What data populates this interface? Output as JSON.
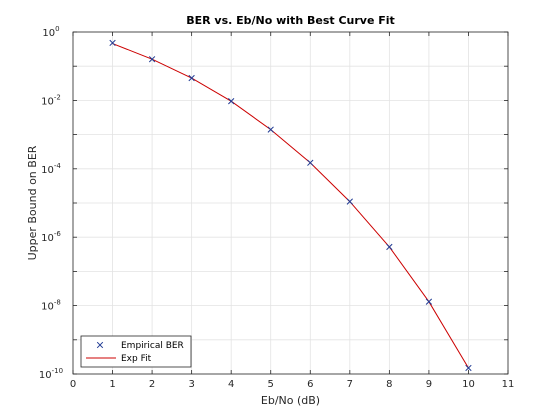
{
  "chart_data": {
    "type": "line",
    "title": "BER vs. Eb/No with Best Curve Fit",
    "xlabel": "Eb/No (dB)",
    "ylabel": "Upper Bound on BER",
    "xlim": [
      0,
      11
    ],
    "ylim": [
      1e-10,
      1
    ],
    "yscale": "log",
    "grid": true,
    "legend_position": "bottom-left",
    "x_ticks": [
      0,
      1,
      2,
      3,
      4,
      5,
      6,
      7,
      8,
      9,
      10,
      11
    ],
    "y_ticks": [
      {
        "base": "10",
        "exp": "0",
        "value": 1
      },
      {
        "base": "10",
        "exp": "-2",
        "value": 0.01
      },
      {
        "base": "10",
        "exp": "-4",
        "value": 0.0001
      },
      {
        "base": "10",
        "exp": "-6",
        "value": 1e-06
      },
      {
        "base": "10",
        "exp": "-8",
        "value": 1e-08
      },
      {
        "base": "10",
        "exp": "-10",
        "value": 1e-10
      }
    ],
    "series": [
      {
        "name": "Empirical BER",
        "style": "markers",
        "marker": "x",
        "color": "#1f3a93",
        "x": [
          1,
          2,
          3,
          4,
          5,
          6,
          7,
          8,
          9,
          10
        ],
        "y": [
          0.48,
          0.16,
          0.045,
          0.0095,
          0.0014,
          0.00015,
          1.1e-05,
          5.2e-07,
          1.3e-08,
          1.5e-10
        ]
      },
      {
        "name": "Exp Fit",
        "style": "line",
        "color": "#cc0000",
        "x": [
          1,
          2,
          3,
          4,
          5,
          6,
          7,
          8,
          9,
          10
        ],
        "y": [
          0.46,
          0.16,
          0.045,
          0.0095,
          0.0014,
          0.00015,
          1.1e-05,
          5.2e-07,
          1.3e-08,
          1.5e-10
        ]
      }
    ]
  }
}
